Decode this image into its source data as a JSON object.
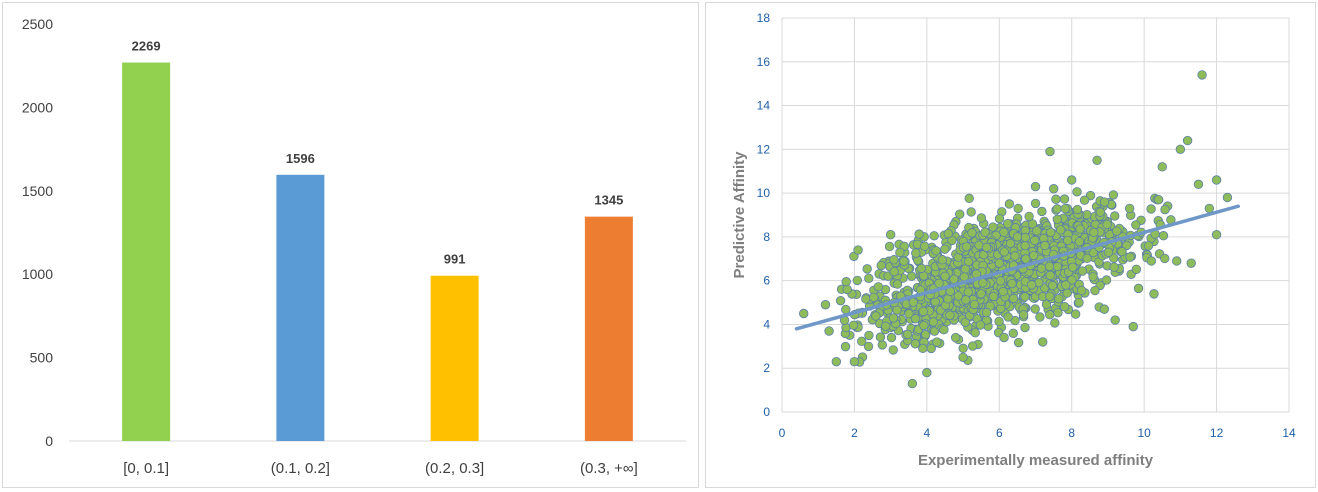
{
  "chart_data": [
    {
      "type": "bar",
      "title": "",
      "xlabel": "",
      "ylabel": "",
      "categories": [
        "[0, 0.1]",
        "(0.1, 0.2]",
        "(0.2, 0.3]",
        "(0.3, +∞]"
      ],
      "values": [
        2269,
        1596,
        991,
        1345
      ],
      "data_labels": [
        "2269",
        "1596",
        "991",
        "1345"
      ],
      "colors": [
        "#92d050",
        "#5b9bd5",
        "#ffc000",
        "#ed7d31"
      ],
      "ylim": [
        0,
        2500
      ],
      "yticks": [
        "0",
        "500",
        "1000",
        "1500",
        "2000",
        "2500"
      ],
      "grid": false,
      "legend": "none"
    },
    {
      "type": "scatter",
      "title": "",
      "xlabel": "Experimentally measured affinity",
      "ylabel": "Predictive Affinity",
      "xlim": [
        0,
        14
      ],
      "ylim": [
        0,
        18
      ],
      "xticks": [
        "0",
        "2",
        "4",
        "6",
        "8",
        "10",
        "12",
        "14"
      ],
      "yticks": [
        "0",
        "2",
        "4",
        "6",
        "8",
        "10",
        "12",
        "14",
        "16",
        "18"
      ],
      "grid": true,
      "legend": "none",
      "marker_color": "#8fbc5a",
      "marker_edge_color": "#5a7fa8",
      "trendline": {
        "x": [
          0.4,
          12.6
        ],
        "y": [
          3.8,
          9.4
        ],
        "color": "#6f98c8"
      },
      "points_sample": [
        {
          "x": 0.6,
          "y": 4.5
        },
        {
          "x": 1.2,
          "y": 4.9
        },
        {
          "x": 1.3,
          "y": 3.7
        },
        {
          "x": 1.5,
          "y": 2.3
        },
        {
          "x": 1.8,
          "y": 5.6
        },
        {
          "x": 2.0,
          "y": 2.3
        },
        {
          "x": 2.1,
          "y": 7.4
        },
        {
          "x": 2.4,
          "y": 3.5
        },
        {
          "x": 3.0,
          "y": 8.1
        },
        {
          "x": 3.6,
          "y": 1.3
        },
        {
          "x": 3.9,
          "y": 4.6
        },
        {
          "x": 4.0,
          "y": 1.8
        },
        {
          "x": 4.5,
          "y": 6.2
        },
        {
          "x": 5.0,
          "y": 2.5
        },
        {
          "x": 5.5,
          "y": 5.4
        },
        {
          "x": 6.0,
          "y": 6.8
        },
        {
          "x": 6.5,
          "y": 8.0
        },
        {
          "x": 7.0,
          "y": 10.3
        },
        {
          "x": 7.2,
          "y": 3.2
        },
        {
          "x": 7.4,
          "y": 11.9
        },
        {
          "x": 7.5,
          "y": 7.2
        },
        {
          "x": 8.0,
          "y": 10.6
        },
        {
          "x": 8.2,
          "y": 5.0
        },
        {
          "x": 8.7,
          "y": 11.5
        },
        {
          "x": 8.9,
          "y": 4.7
        },
        {
          "x": 9.2,
          "y": 4.2
        },
        {
          "x": 9.6,
          "y": 9.3
        },
        {
          "x": 9.7,
          "y": 3.9
        },
        {
          "x": 10.2,
          "y": 6.9
        },
        {
          "x": 10.4,
          "y": 9.7
        },
        {
          "x": 10.5,
          "y": 11.2
        },
        {
          "x": 10.9,
          "y": 6.9
        },
        {
          "x": 11.0,
          "y": 12.0
        },
        {
          "x": 11.2,
          "y": 12.4
        },
        {
          "x": 11.3,
          "y": 6.8
        },
        {
          "x": 11.5,
          "y": 10.4
        },
        {
          "x": 11.6,
          "y": 15.4
        },
        {
          "x": 11.8,
          "y": 9.3
        },
        {
          "x": 12.0,
          "y": 10.6
        },
        {
          "x": 12.0,
          "y": 8.1
        },
        {
          "x": 12.3,
          "y": 9.8
        }
      ]
    }
  ]
}
